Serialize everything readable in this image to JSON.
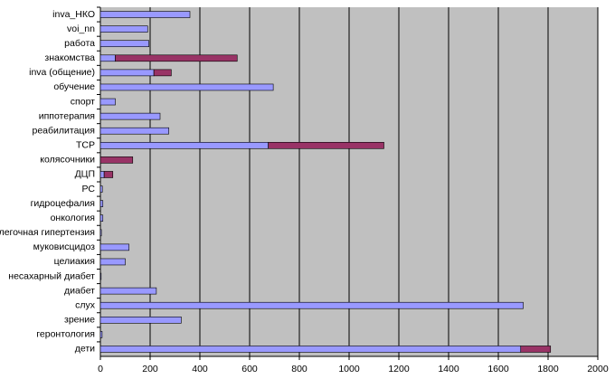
{
  "chart_data": {
    "type": "bar",
    "orientation": "horizontal",
    "stacked": true,
    "categories": [
      "inva_НКО",
      "voi_nn",
      "работа",
      "знакомства",
      "inva (общение)",
      "обучение",
      "спорт",
      "иппотерапия",
      "реабилитация",
      "ТСР",
      "колясочники",
      "ДЦП",
      "РС",
      "гидроцефалия",
      "онкология",
      "легочная гипертензия",
      "муковисцидоз",
      "целиакия",
      "несахарный диабет",
      "диабет",
      "слух",
      "зрение",
      "геронтология",
      "дети"
    ],
    "series": [
      {
        "color": "#9999ff",
        "values": [
          360,
          190,
          195,
          60,
          215,
          695,
          60,
          240,
          275,
          675,
          0,
          15,
          8,
          10,
          10,
          4,
          115,
          100,
          3,
          225,
          1700,
          325,
          7,
          1690
        ]
      },
      {
        "color": "#993366",
        "values": [
          0,
          0,
          0,
          490,
          70,
          0,
          0,
          0,
          0,
          465,
          130,
          35,
          0,
          0,
          0,
          0,
          0,
          0,
          0,
          0,
          0,
          0,
          0,
          120
        ]
      }
    ],
    "xlim": [
      0,
      2000
    ],
    "xticks": [
      0,
      200,
      400,
      600,
      800,
      1000,
      1200,
      1400,
      1600,
      1800,
      2000
    ],
    "grid": true,
    "background": "#c0c0c0"
  }
}
